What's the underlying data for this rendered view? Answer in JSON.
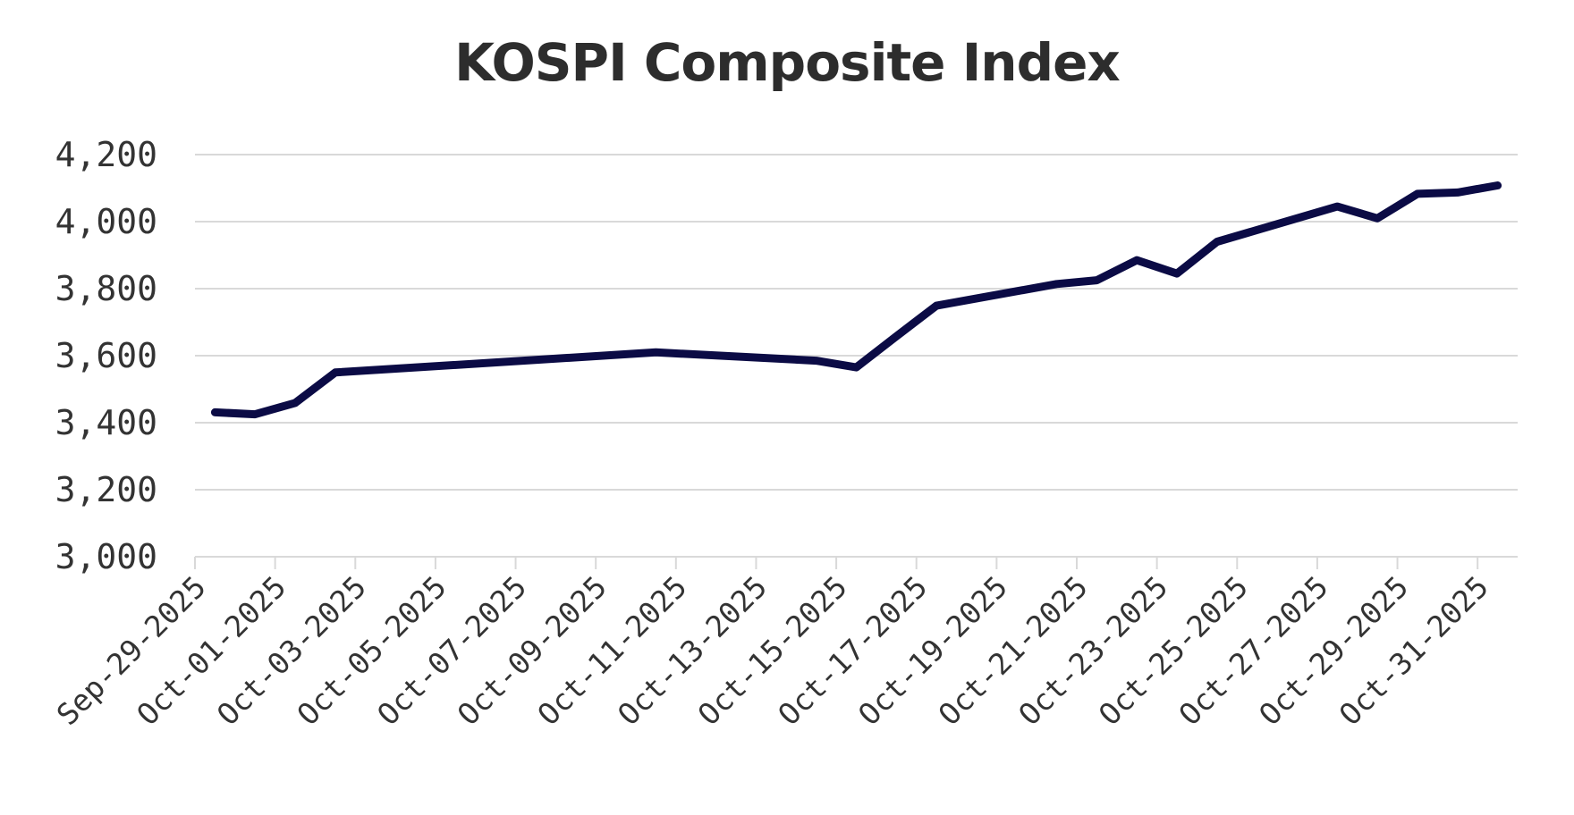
{
  "chart_data": {
    "type": "line",
    "title": "KOSPI Composite Index",
    "xlabel": "",
    "ylabel": "",
    "ylim": [
      3000,
      4200
    ],
    "yticks": [
      3000,
      3200,
      3400,
      3600,
      3800,
      4000,
      4200
    ],
    "ytick_labels": [
      "3,000",
      "3,200",
      "3,400",
      "3,600",
      "3,800",
      "4,000",
      "4,200"
    ],
    "xlim": [
      0,
      33
    ],
    "xtick_positions": [
      0,
      2,
      4,
      6,
      8,
      10,
      12,
      14,
      16,
      18,
      20,
      22,
      24,
      26,
      28,
      30,
      32
    ],
    "xtick_labels": [
      "Sep-29-2025",
      "Oct-01-2025",
      "Oct-03-2025",
      "Oct-05-2025",
      "Oct-07-2025",
      "Oct-09-2025",
      "Oct-11-2025",
      "Oct-13-2025",
      "Oct-15-2025",
      "Oct-17-2025",
      "Oct-19-2025",
      "Oct-21-2025",
      "Oct-23-2025",
      "Oct-25-2025",
      "Oct-27-2025",
      "Oct-29-2025",
      "Oct-31-2025"
    ],
    "grid": true,
    "series": [
      {
        "name": "KOSPI Composite Index",
        "color": "#0b0b45",
        "x": [
          0.5,
          1.5,
          2.5,
          3.5,
          11.5,
          15.5,
          16.5,
          17.5,
          18.5,
          21.5,
          22.5,
          23.5,
          24.5,
          25.5,
          28.5,
          29.5,
          30.5,
          31.5,
          32.5
        ],
        "values": [
          3431,
          3425,
          3459,
          3550,
          3610,
          3585,
          3565,
          3658,
          3749,
          3814,
          3825,
          3885,
          3845,
          3940,
          4045,
          4010,
          4083,
          4087,
          4108
        ]
      }
    ]
  }
}
